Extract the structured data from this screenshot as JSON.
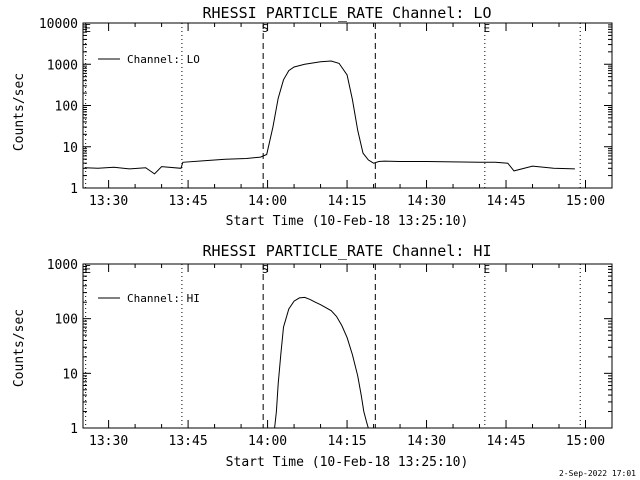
{
  "page": {
    "footer_date": "2-Sep-2022 17:01"
  },
  "chart_data": [
    {
      "type": "line",
      "title": "RHESSI PARTICLE_RATE Channel: LO",
      "xlabel": "Start Time (10-Feb-18 13:25:10)",
      "ylabel": "Counts/sec",
      "ylim": [
        1,
        10000
      ],
      "yscale": "log",
      "xlim": [
        "13:25:10",
        "15:05:00"
      ],
      "x_ticks": [
        "13:30",
        "13:45",
        "14:00",
        "14:15",
        "14:30",
        "14:45",
        "15:00"
      ],
      "y_ticks": [
        "1",
        "10",
        "100",
        "1000",
        "10000"
      ],
      "legend": {
        "entries": [
          "Channel: LO"
        ],
        "placement": "top-left"
      },
      "markers": [
        {
          "label": "E",
          "time": "13:25:40",
          "style": "dotted"
        },
        {
          "label": "",
          "time": "13:43:50",
          "style": "dotted"
        },
        {
          "label": "S",
          "time": "13:59:10",
          "style": "dashed"
        },
        {
          "label": "",
          "time": "14:20:20",
          "style": "dashed"
        },
        {
          "label": "E",
          "time": "14:41:00",
          "style": "dotted"
        },
        {
          "label": "",
          "time": "14:59:00",
          "style": "dotted"
        }
      ],
      "series": [
        {
          "name": "Channel: LO",
          "x": [
            "13:25:30",
            "13:28:00",
            "13:31:00",
            "13:34:00",
            "13:37:00",
            "13:38:40",
            "13:40:00",
            "13:43:40",
            "13:44:00",
            "13:48:00",
            "13:52:00",
            "13:56:00",
            "13:58:40",
            "13:59:50",
            "14:01:00",
            "14:02:00",
            "14:03:00",
            "14:04:00",
            "14:05:00",
            "14:07:00",
            "14:10:00",
            "14:12:00",
            "14:13:30",
            "14:15:00",
            "14:16:00",
            "14:17:00",
            "14:18:00",
            "14:19:00",
            "14:20:00",
            "14:21:00",
            "14:22:00",
            "14:25:00",
            "14:30:00",
            "14:35:00",
            "14:40:00",
            "14:43:00",
            "14:45:20",
            "14:46:30",
            "14:50:00",
            "14:54:00",
            "14:58:00"
          ],
          "values": [
            3.1,
            3.0,
            3.2,
            2.9,
            3.1,
            2.2,
            3.3,
            3.0,
            4.2,
            4.6,
            5.0,
            5.2,
            5.6,
            6.5,
            30,
            150,
            420,
            700,
            860,
            1000,
            1150,
            1200,
            1050,
            550,
            140,
            25,
            7,
            4.8,
            4.0,
            4.4,
            4.5,
            4.4,
            4.4,
            4.3,
            4.2,
            4.2,
            4.0,
            2.6,
            3.4,
            3.0,
            2.9
          ]
        }
      ]
    },
    {
      "type": "line",
      "title": "RHESSI PARTICLE_RATE Channel: HI",
      "xlabel": "Start Time (10-Feb-18 13:25:10)",
      "ylabel": "Counts/sec",
      "ylim": [
        1,
        1000
      ],
      "yscale": "log",
      "xlim": [
        "13:25:10",
        "15:05:00"
      ],
      "x_ticks": [
        "13:30",
        "13:45",
        "14:00",
        "14:15",
        "14:30",
        "14:45",
        "15:00"
      ],
      "y_ticks": [
        "1",
        "10",
        "100",
        "1000"
      ],
      "legend": {
        "entries": [
          "Channel: HI"
        ],
        "placement": "top-left"
      },
      "markers": [
        {
          "label": "E",
          "time": "13:25:40",
          "style": "dotted"
        },
        {
          "label": "",
          "time": "13:43:50",
          "style": "dotted"
        },
        {
          "label": "S",
          "time": "13:59:10",
          "style": "dashed"
        },
        {
          "label": "",
          "time": "14:20:20",
          "style": "dashed"
        },
        {
          "label": "E",
          "time": "14:41:00",
          "style": "dotted"
        },
        {
          "label": "",
          "time": "14:59:00",
          "style": "dotted"
        }
      ],
      "series": [
        {
          "name": "Channel: HI",
          "x": [
            "14:01:20",
            "14:01:40",
            "14:02:00",
            "14:02:30",
            "14:03:00",
            "14:04:00",
            "14:05:00",
            "14:06:00",
            "14:07:00",
            "14:08:00",
            "14:09:00",
            "14:10:00",
            "14:12:00",
            "14:13:00",
            "14:14:00",
            "14:15:00",
            "14:16:00",
            "14:17:00",
            "14:17:40",
            "14:18:10",
            "14:18:40",
            "14:19:00"
          ],
          "values": [
            1.0,
            2.0,
            6.5,
            22,
            70,
            150,
            210,
            240,
            245,
            225,
            200,
            180,
            140,
            110,
            75,
            45,
            22,
            9,
            4,
            2,
            1.3,
            1.0
          ]
        }
      ]
    }
  ]
}
